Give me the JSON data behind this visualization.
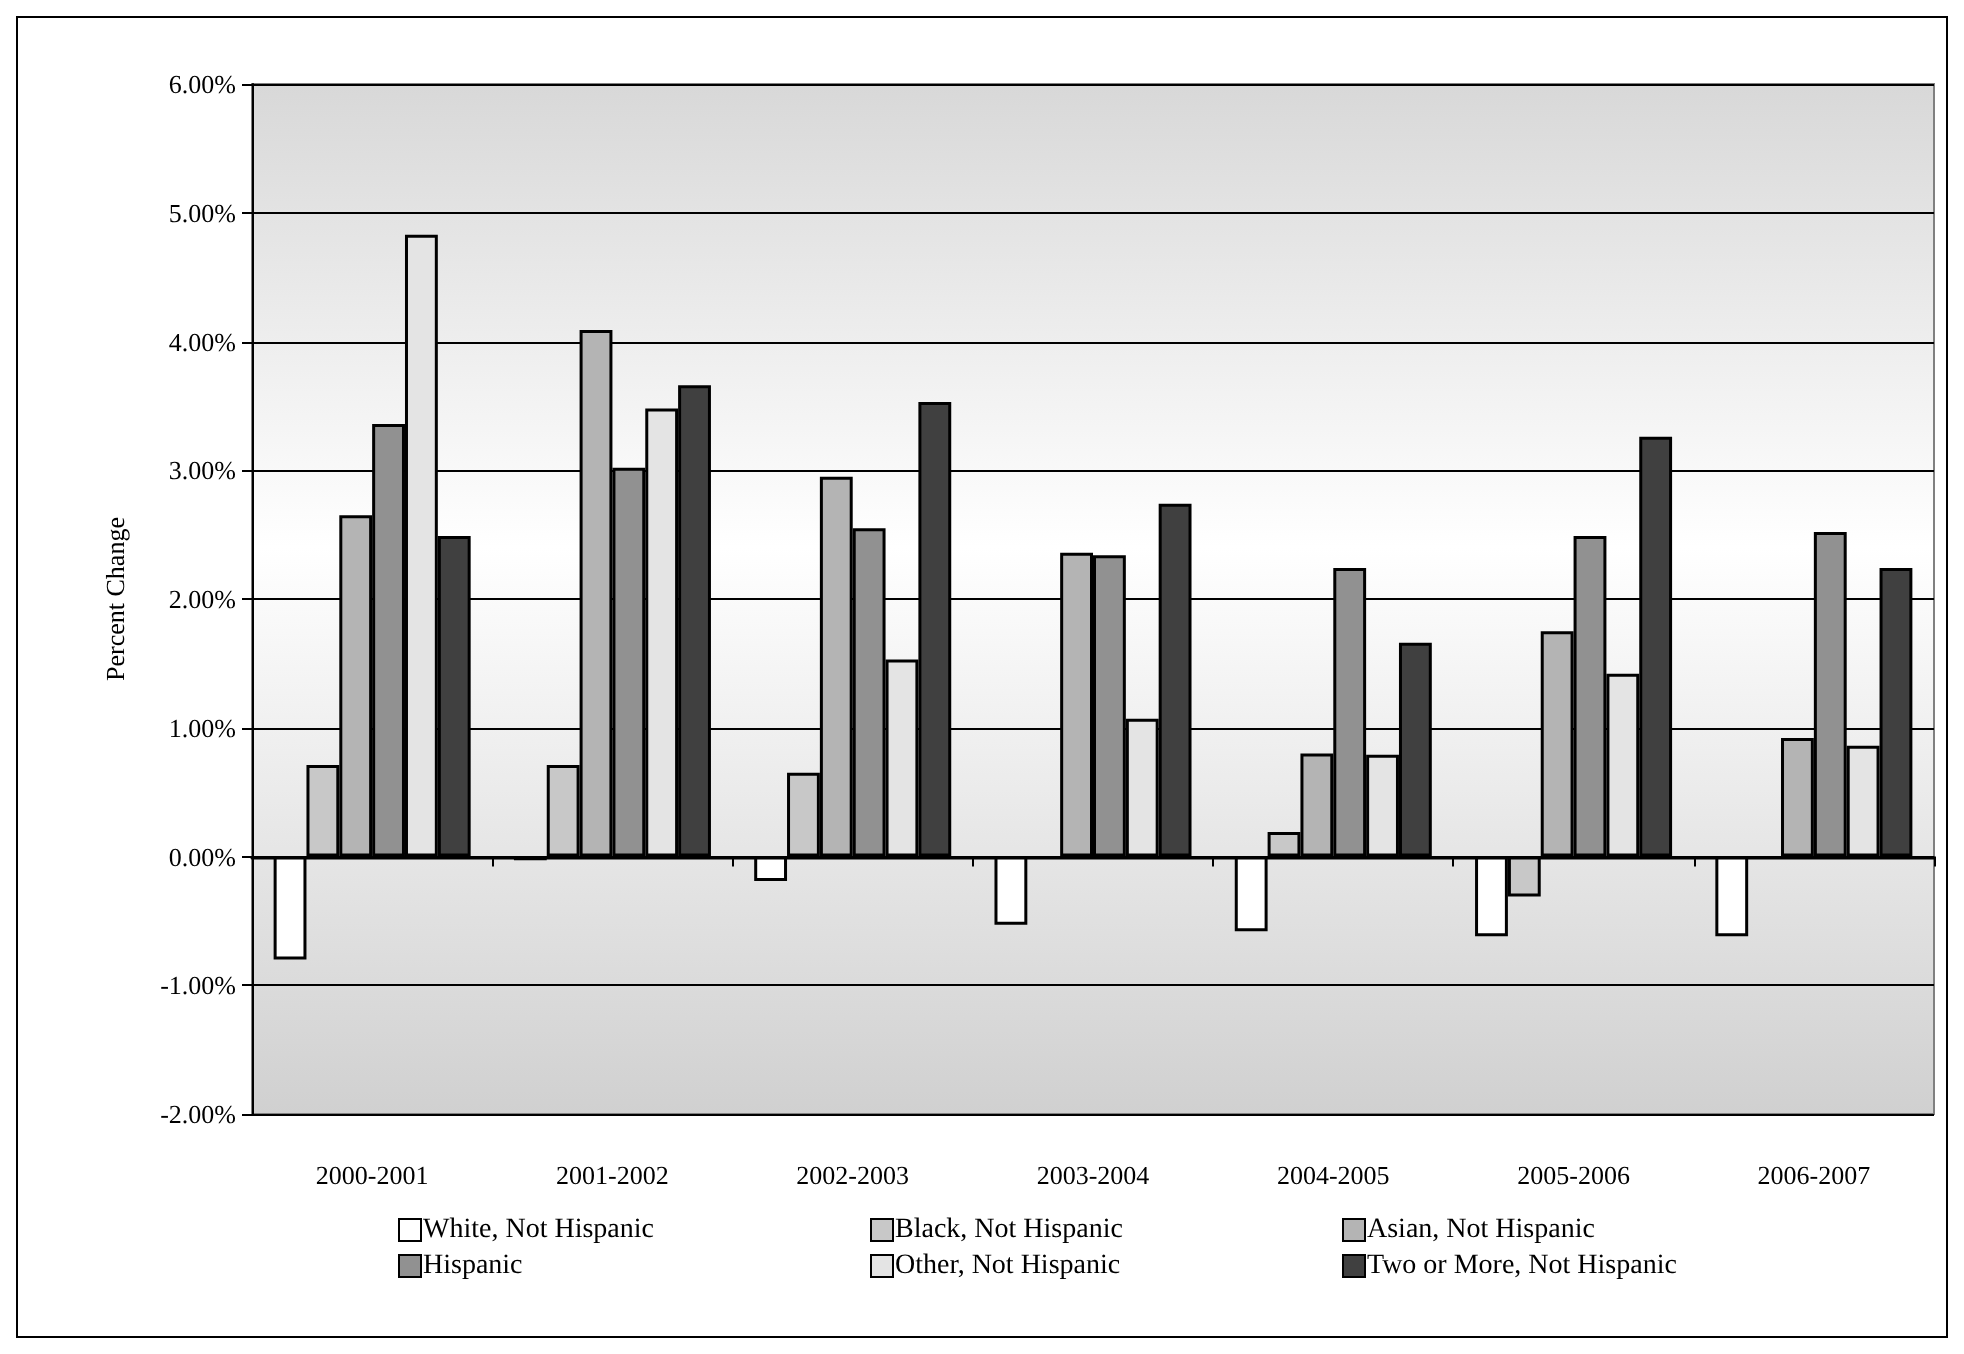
{
  "chart_data": {
    "type": "bar",
    "ylabel": "Percent Change",
    "categories": [
      "2000-2001",
      "2001-2002",
      "2002-2003",
      "2003-2004",
      "2004-2005",
      "2005-2006",
      "2006-2007"
    ],
    "series": [
      {
        "name": "White, Not Hispanic",
        "color": "#ffffff",
        "values": [
          -0.8,
          -0.03,
          -0.19,
          -0.53,
          -0.58,
          -0.62,
          -0.62
        ]
      },
      {
        "name": "Black, Not Hispanic",
        "color": "#c8c8c8",
        "values": [
          0.71,
          0.71,
          0.65,
          null,
          0.19,
          -0.31,
          null
        ]
      },
      {
        "name": "Asian, Not Hispanic",
        "color": "#b4b4b4",
        "values": [
          2.65,
          4.09,
          2.95,
          2.36,
          0.8,
          1.75,
          0.92
        ]
      },
      {
        "name": "Hispanic",
        "color": "#919191",
        "values": [
          3.36,
          3.02,
          2.55,
          2.34,
          2.24,
          2.49,
          2.52
        ]
      },
      {
        "name": "Other, Not Hispanic",
        "color": "#e4e4e4",
        "values": [
          4.83,
          3.48,
          1.53,
          1.07,
          0.79,
          1.42,
          0.86
        ]
      },
      {
        "name": "Two or More, Not Hispanic",
        "color": "#404040",
        "values": [
          2.49,
          3.66,
          3.53,
          2.74,
          1.66,
          3.26,
          2.24
        ]
      }
    ],
    "ylim": [
      -2,
      6
    ],
    "yticks": [
      {
        "value": -2,
        "label": "-2.00%"
      },
      {
        "value": -1,
        "label": "-1.00%"
      },
      {
        "value": 0,
        "label": "0.00%"
      },
      {
        "value": 1,
        "label": "1.00%"
      },
      {
        "value": 2,
        "label": "2.00%"
      },
      {
        "value": 3,
        "label": "3.00%"
      },
      {
        "value": 4,
        "label": "4.00%"
      },
      {
        "value": 5,
        "label": "5.00%"
      },
      {
        "value": 6,
        "label": "6.00%"
      }
    ],
    "grid": "y",
    "legend": "bottom"
  }
}
